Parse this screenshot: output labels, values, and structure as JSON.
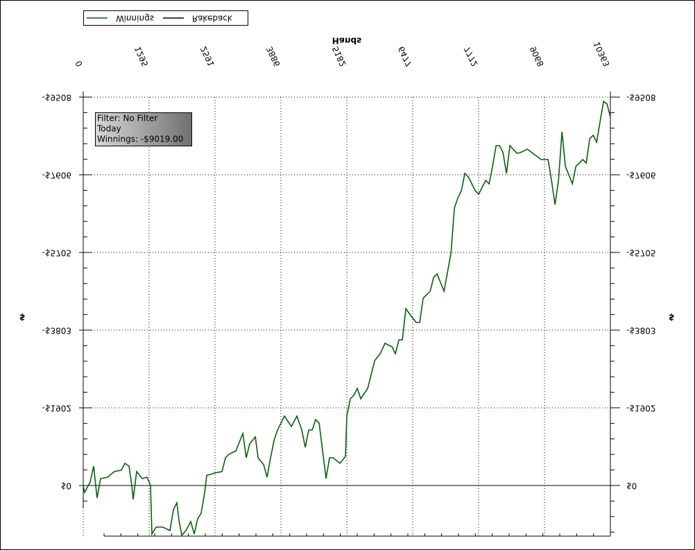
{
  "chart_data": {
    "type": "line",
    "x_label": "Hands",
    "y_label": "$",
    "annotation": [
      "Filter: No Filter",
      "Today",
      "Winnings: -$9019.00"
    ],
    "xlim": [
      0,
      10363
    ],
    "xticks": [
      0,
      1295,
      2591,
      3886,
      5182,
      6477,
      7772,
      9068,
      10363
    ],
    "ylim": [
      -9508,
      1240
    ],
    "yticks": [
      {
        "value": -9508,
        "label": "-$9508"
      },
      {
        "value": -7606,
        "label": "-$7606"
      },
      {
        "value": -5705,
        "label": "-$5705"
      },
      {
        "value": -3803,
        "label": "-$3803"
      },
      {
        "value": -1902,
        "label": "-$1902"
      },
      {
        "value": 0,
        "label": "$0"
      }
    ],
    "grid": true,
    "series": [
      {
        "name": "Winnings",
        "color": "#006400",
        "x": [
          0,
          27,
          136,
          205,
          245,
          273,
          341,
          477,
          614,
          750,
          818,
          900,
          955,
          982,
          1050,
          1159,
          1255,
          1323,
          1350,
          1432,
          1568,
          1705,
          1773,
          1841,
          1882,
          1937,
          2019,
          2114,
          2182,
          2250,
          2318,
          2387,
          2428,
          2455,
          2591,
          2728,
          2796,
          2864,
          3001,
          3137,
          3205,
          3273,
          3383,
          3437,
          3546,
          3614,
          3683,
          3751,
          3819,
          3956,
          4092,
          4201,
          4296,
          4365,
          4433,
          4501,
          4569,
          4638,
          4706,
          4774,
          4842,
          4910,
          5047,
          5156,
          5182,
          5251,
          5319,
          5387,
          5456,
          5592,
          5729,
          5838,
          5933,
          6070,
          6138,
          6206,
          6274,
          6343,
          6438,
          6547,
          6615,
          6683,
          6820,
          6888,
          6956,
          7093,
          7229,
          7297,
          7366,
          7434,
          7502,
          7570,
          7707,
          7775,
          7843,
          7911,
          7979,
          8047,
          8116,
          8184,
          8252,
          8320,
          8388,
          8525,
          8593,
          8729,
          9002,
          9138,
          9206,
          9275,
          9343,
          9411,
          9479,
          9616,
          9684,
          9820,
          9888,
          9957,
          10025,
          10093,
          10161,
          10229,
          10298,
          10363
        ],
        "values": [
          0,
          170,
          -85,
          -475,
          0,
          306,
          -170,
          -204,
          -340,
          -374,
          -543,
          -475,
          0,
          340,
          -340,
          -170,
          -204,
          0,
          1189,
          1019,
          1019,
          1104,
          594,
          424,
          849,
          1222,
          1104,
          883,
          1189,
          815,
          679,
          170,
          -255,
          -255,
          -306,
          -340,
          -679,
          -764,
          -849,
          -1273,
          -679,
          -1019,
          -1189,
          -679,
          -509,
          -204,
          -679,
          -1104,
          -1358,
          -1698,
          -1443,
          -1698,
          -1358,
          -934,
          -1358,
          -1358,
          -1613,
          -1528,
          -849,
          -170,
          -679,
          -679,
          -543,
          -713,
          -1698,
          -2123,
          -2207,
          -2377,
          -2123,
          -2377,
          -3056,
          -3226,
          -3481,
          -3396,
          -3226,
          -3566,
          -3566,
          -4330,
          -4160,
          -3990,
          -3990,
          -4585,
          -4755,
          -5095,
          -5179,
          -4755,
          -5689,
          -6792,
          -7046,
          -7216,
          -7640,
          -7556,
          -7216,
          -7131,
          -7301,
          -7471,
          -7386,
          -7810,
          -8319,
          -8319,
          -8150,
          -7640,
          -8319,
          -8133,
          -8150,
          -8235,
          -7980,
          -7980,
          -7471,
          -6877,
          -7471,
          -8659,
          -7810,
          -7386,
          -7810,
          -7980,
          -7895,
          -8489,
          -8574,
          -8404,
          -8913,
          -9405,
          -9339,
          -9019
        ]
      },
      {
        "name": "Rakeback",
        "color": "#000000",
        "x": [
          0,
          10363
        ],
        "values": [
          0,
          0
        ]
      }
    ]
  }
}
